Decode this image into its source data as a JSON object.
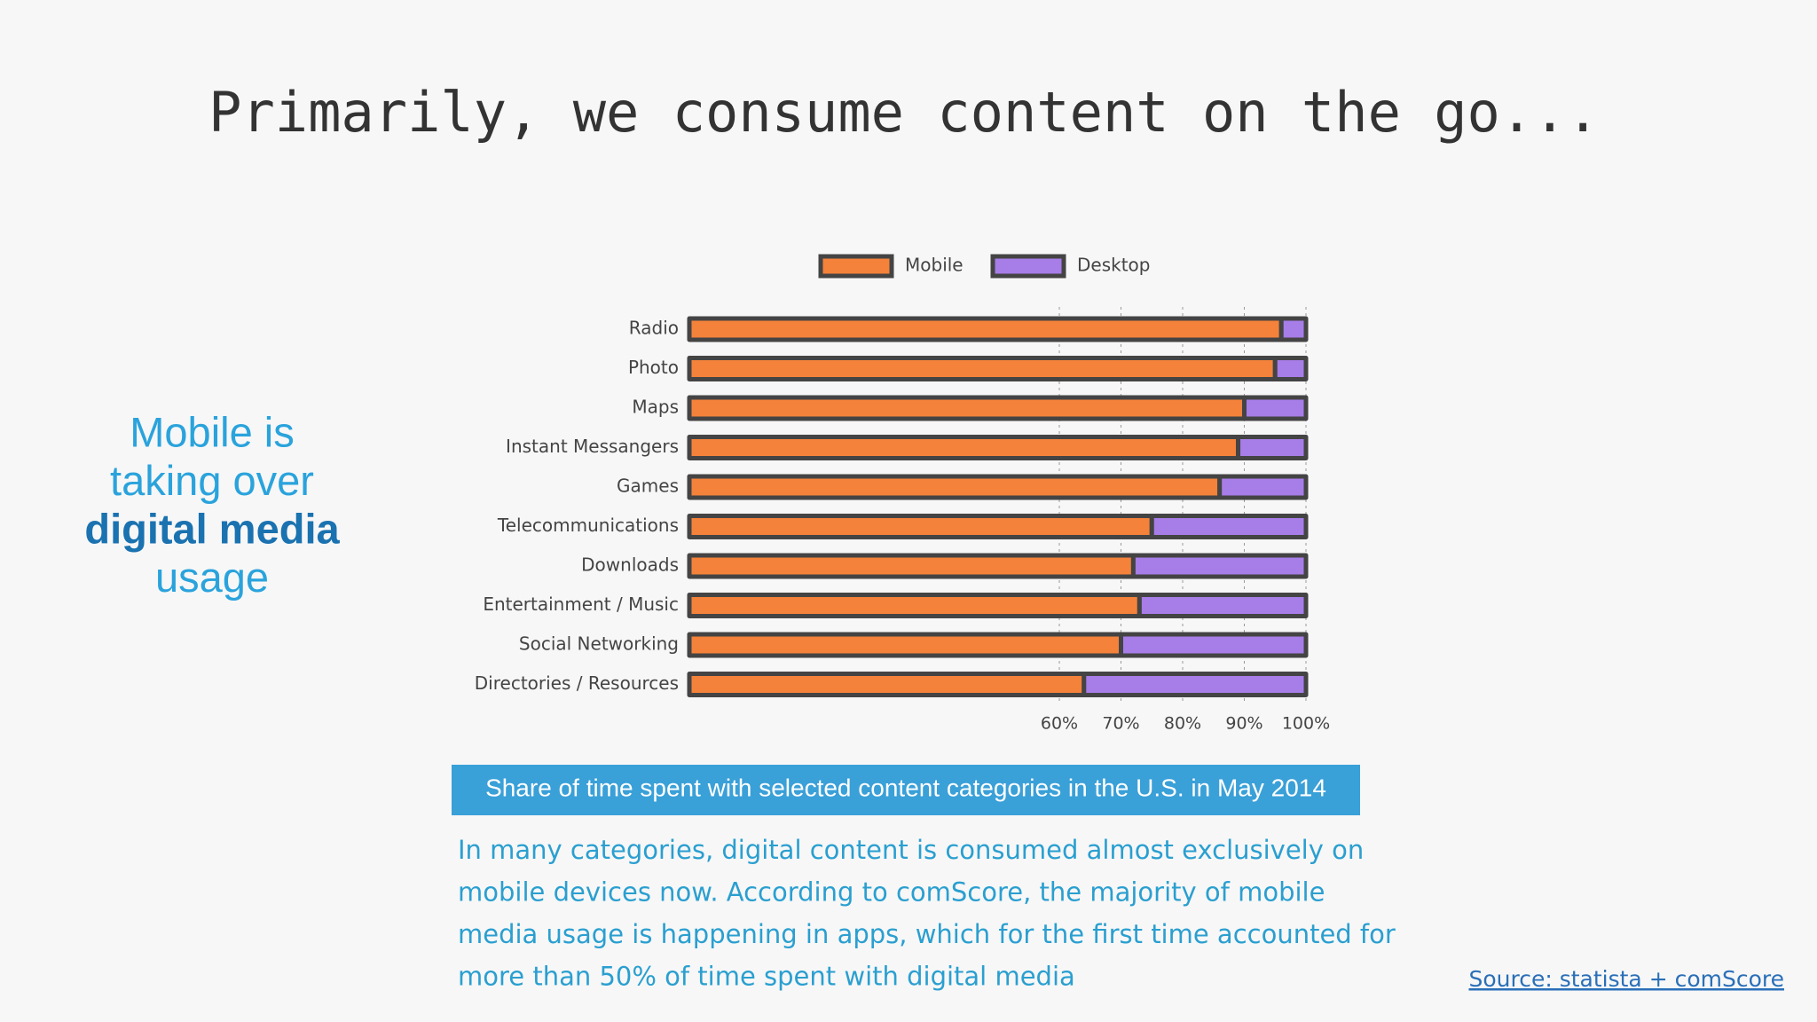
{
  "title": "Primarily, we consume content on the go...",
  "side_text": [
    "Mobile is",
    "taking over",
    "digital media",
    "usage"
  ],
  "caption": "Share of time spent with selected content categories in the U.S. in May 2014",
  "body": [
    "In many categories, digital content is consumed almost exclusively on",
    "mobile devices now. According to comScore, the majority of mobile",
    "media usage is happening in apps, which for the first time accounted for",
    "more than 50% of time spent with digital media"
  ],
  "source": "Source: statista + comScore",
  "chart_data": {
    "type": "stacked-bar-horizontal",
    "categories": [
      "Radio",
      "Photo",
      "Maps",
      "Instant Messangers",
      "Games",
      "Telecommunications",
      "Downloads",
      "Entertainment / Music",
      "Social Networking",
      "Directories / Resources"
    ],
    "series": [
      {
        "name": "Mobile",
        "color": "#f4823a",
        "values": [
          96,
          95,
          90,
          89,
          86,
          75,
          72,
          73,
          70,
          64
        ]
      },
      {
        "name": "Desktop",
        "color": "#a77de8",
        "values": [
          4,
          5,
          10,
          11,
          14,
          25,
          28,
          27,
          30,
          36
        ]
      }
    ],
    "xlim": [
      0,
      100
    ],
    "xticks": [
      {
        "value": 60,
        "label": "60%"
      },
      {
        "value": 70,
        "label": "70%"
      },
      {
        "value": 80,
        "label": "80%"
      },
      {
        "value": 90,
        "label": "90%"
      },
      {
        "value": 100,
        "label": "100%"
      }
    ],
    "grid": true,
    "legend": "top"
  }
}
